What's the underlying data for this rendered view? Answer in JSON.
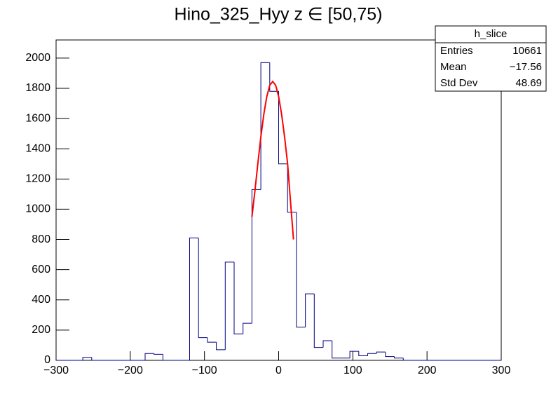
{
  "chart_data": {
    "type": "histogram",
    "title": "Hino_325_Hyy z  ∈ [50,75)",
    "bins": [
      -300,
      -288,
      -276,
      -264,
      -252,
      -240,
      -228,
      -216,
      -204,
      -192,
      -180,
      -168,
      -156,
      -144,
      -132,
      -120,
      -108,
      -96,
      -84,
      -72,
      -60,
      -48,
      -36,
      -24,
      -12,
      0,
      12,
      24,
      36,
      48,
      60,
      72,
      84,
      96,
      108,
      120,
      132,
      144,
      156,
      168,
      180,
      192,
      204,
      216,
      228,
      240,
      252,
      264,
      276,
      288,
      300
    ],
    "values": [
      0,
      0,
      0,
      20,
      0,
      0,
      0,
      0,
      0,
      0,
      45,
      40,
      0,
      0,
      0,
      810,
      150,
      120,
      70,
      650,
      175,
      245,
      1130,
      1970,
      1780,
      1300,
      980,
      220,
      440,
      85,
      130,
      15,
      15,
      60,
      30,
      45,
      55,
      25,
      15,
      0,
      0,
      0,
      0,
      0,
      0,
      0,
      0,
      0,
      0,
      0
    ],
    "color": "#000080",
    "fit": {
      "color": "#ff0000",
      "x": [
        -36,
        -32,
        -28,
        -24,
        -20,
        -16,
        -12,
        -8,
        -4,
        0,
        4,
        8,
        12,
        16,
        20
      ],
      "values": [
        950,
        1120,
        1304,
        1478,
        1628,
        1745,
        1820,
        1845,
        1820,
        1745,
        1628,
        1478,
        1304,
        1050,
        800
      ]
    },
    "xlim": [
      -300,
      300
    ],
    "xticks": [
      {
        "value": -300,
        "label": "−300"
      },
      {
        "value": -200,
        "label": "−200"
      },
      {
        "value": -100,
        "label": "−100"
      },
      0,
      100,
      200,
      300
    ],
    "ylim": [
      0,
      2120
    ],
    "yticks": [
      0,
      200,
      400,
      600,
      800,
      1000,
      1200,
      1400,
      1600,
      1800,
      2000
    ],
    "stats": {
      "title": "h_slice",
      "rows": [
        [
          "Entries",
          "10661"
        ],
        [
          "Mean",
          "−17.56"
        ],
        [
          "Std Dev",
          "48.69"
        ]
      ]
    }
  }
}
